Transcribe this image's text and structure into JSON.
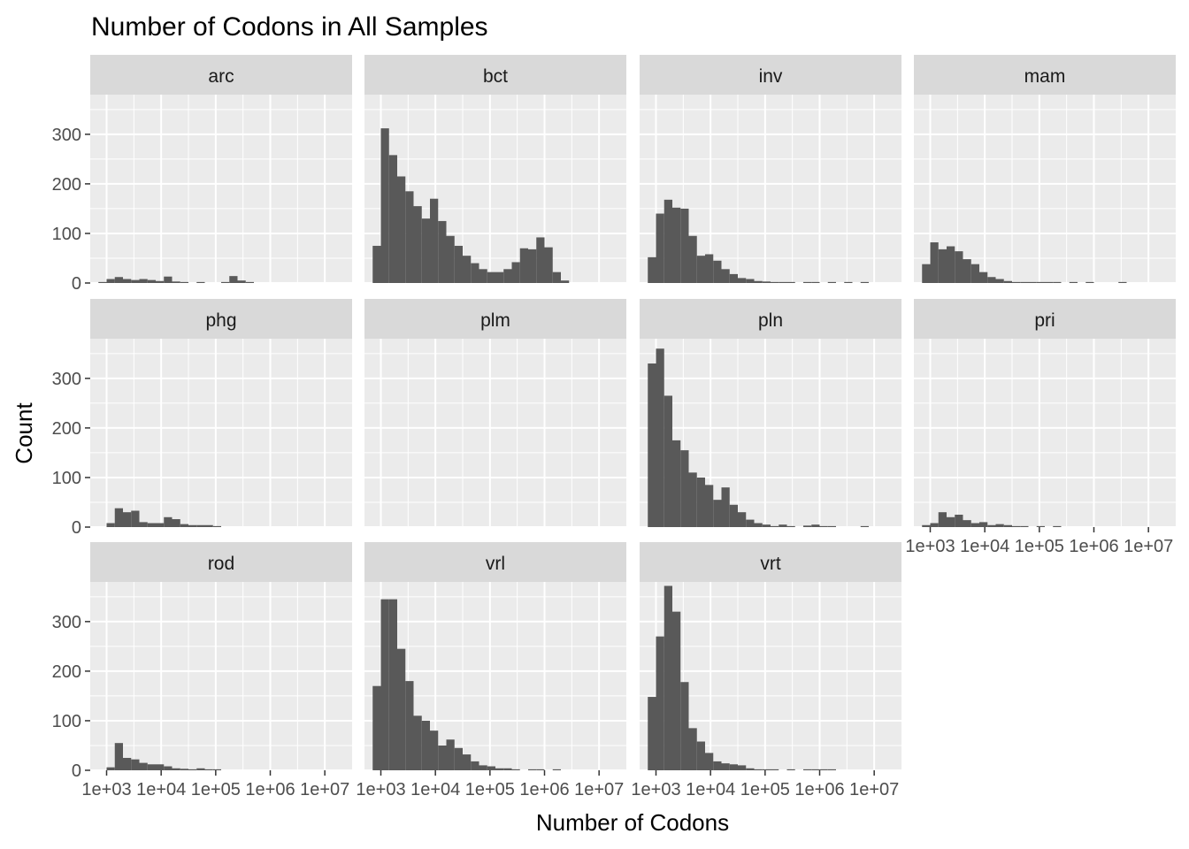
{
  "chart_data": {
    "type": "bar",
    "title": "Number of Codons in All Samples",
    "xlabel": "Number of Codons",
    "ylabel": "Count",
    "x_scale": "log10",
    "x_ticks": [
      "1e+03",
      "1e+04",
      "1e+05",
      "1e+06",
      "1e+07"
    ],
    "y_ticks": [
      "0",
      "100",
      "200",
      "300"
    ],
    "ylim": [
      0,
      380
    ],
    "bin_start_log10": 2.85,
    "bin_width_log10": 0.15,
    "facets": [
      {
        "name": "arc",
        "counts": [
          2,
          8,
          12,
          8,
          6,
          8,
          6,
          4,
          13,
          3,
          2,
          0,
          2,
          0,
          0,
          2,
          14,
          5,
          2,
          0,
          0,
          0,
          0,
          0,
          0,
          0,
          0,
          0,
          0
        ]
      },
      {
        "name": "bct",
        "counts": [
          75,
          312,
          258,
          215,
          185,
          155,
          130,
          170,
          125,
          95,
          75,
          55,
          40,
          28,
          22,
          22,
          28,
          42,
          70,
          68,
          92,
          72,
          22,
          5,
          0,
          0,
          0,
          0,
          0
        ]
      },
      {
        "name": "inv",
        "counts": [
          52,
          140,
          168,
          152,
          150,
          95,
          55,
          58,
          45,
          28,
          18,
          10,
          8,
          4,
          3,
          2,
          2,
          2,
          0,
          2,
          2,
          0,
          2,
          0,
          2,
          0,
          2,
          0,
          0
        ]
      },
      {
        "name": "mam",
        "counts": [
          38,
          82,
          68,
          74,
          64,
          48,
          38,
          22,
          12,
          8,
          4,
          2,
          2,
          2,
          2,
          2,
          2,
          0,
          2,
          0,
          2,
          0,
          0,
          0,
          2,
          0,
          0,
          0,
          0
        ]
      },
      {
        "name": "phg",
        "counts": [
          0,
          8,
          38,
          30,
          33,
          10,
          8,
          8,
          20,
          16,
          6,
          4,
          4,
          4,
          2,
          0,
          0,
          0,
          0,
          0,
          0,
          0,
          0,
          0,
          0,
          0,
          0,
          0,
          0
        ]
      },
      {
        "name": "plm",
        "counts": [
          0,
          0,
          0,
          0,
          0,
          0,
          0,
          0,
          0,
          0,
          0,
          0,
          0,
          0,
          0,
          0,
          0,
          0,
          0,
          0,
          0,
          0,
          0,
          0,
          0,
          0,
          0,
          0,
          0
        ]
      },
      {
        "name": "pln",
        "counts": [
          330,
          360,
          265,
          175,
          155,
          110,
          100,
          85,
          55,
          80,
          45,
          30,
          15,
          8,
          5,
          2,
          5,
          2,
          0,
          3,
          5,
          2,
          2,
          0,
          0,
          0,
          2,
          0,
          0
        ]
      },
      {
        "name": "pri",
        "counts": [
          4,
          8,
          30,
          20,
          25,
          14,
          8,
          10,
          4,
          6,
          4,
          2,
          2,
          0,
          2,
          0,
          2,
          0,
          0,
          0,
          0,
          0,
          0,
          0,
          0,
          0,
          0,
          0,
          0
        ]
      },
      {
        "name": "rod",
        "counts": [
          0,
          6,
          55,
          25,
          22,
          15,
          12,
          12,
          8,
          4,
          3,
          2,
          4,
          2,
          2,
          0,
          0,
          0,
          0,
          0,
          0,
          0,
          0,
          0,
          0,
          0,
          0,
          0,
          0
        ]
      },
      {
        "name": "vrl",
        "counts": [
          170,
          345,
          345,
          245,
          180,
          110,
          100,
          80,
          50,
          62,
          45,
          32,
          18,
          10,
          8,
          4,
          4,
          2,
          0,
          2,
          2,
          0,
          2,
          0,
          0,
          0,
          0,
          0,
          0
        ]
      },
      {
        "name": "vrt",
        "counts": [
          148,
          270,
          372,
          320,
          178,
          85,
          58,
          35,
          18,
          14,
          12,
          10,
          4,
          2,
          2,
          2,
          0,
          2,
          0,
          2,
          2,
          2,
          2,
          0,
          0,
          0,
          0,
          0,
          0
        ]
      }
    ]
  }
}
